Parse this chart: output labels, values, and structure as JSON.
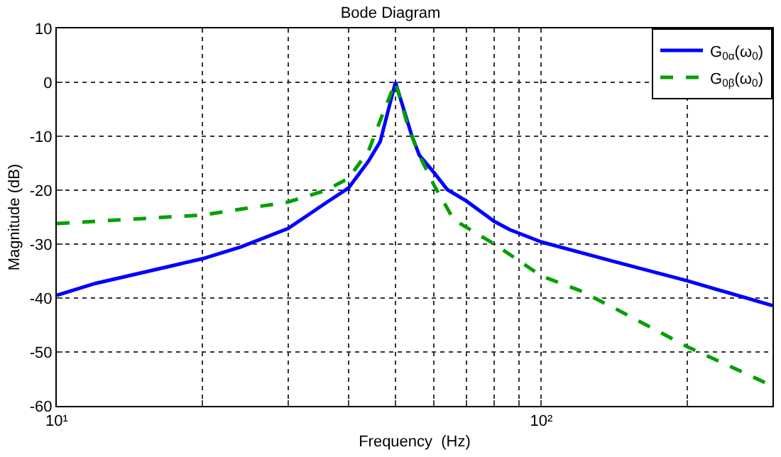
{
  "chart_data": {
    "type": "line",
    "title": "Bode Diagram",
    "xlabel": "Frequency  (Hz)",
    "ylabel": "Magnitude (dB)",
    "log": "x",
    "xlim": [
      10,
      300
    ],
    "ylim": [
      -60,
      10
    ],
    "xticks": [
      {
        "value": 10,
        "label": "10¹"
      },
      {
        "value": 20,
        "label": null
      },
      {
        "value": 30,
        "label": null
      },
      {
        "value": 40,
        "label": null
      },
      {
        "value": 50,
        "label": null
      },
      {
        "value": 60,
        "label": null
      },
      {
        "value": 70,
        "label": null
      },
      {
        "value": 80,
        "label": null
      },
      {
        "value": 90,
        "label": null
      },
      {
        "value": 100,
        "label": "10²"
      },
      {
        "value": 200,
        "label": null
      }
    ],
    "yticks": [
      -60,
      -50,
      -40,
      -30,
      -20,
      -10,
      0,
      10
    ],
    "grid": true,
    "legend": "top right",
    "series": [
      {
        "name": "G$_{0α}$(ω$_{0}$)",
        "color": "#0000ff",
        "line_style": "solid",
        "x": [
          10,
          12,
          20,
          24,
          30,
          33,
          36,
          40,
          44,
          46.5,
          50,
          54,
          56,
          60,
          64,
          70,
          80,
          86,
          100,
          141,
          200,
          300
        ],
        "values": [
          -39.5,
          -37.3,
          -32.7,
          -30.5,
          -27.1,
          -24.6,
          -22.3,
          -19.6,
          -14.6,
          -11,
          0,
          -9.8,
          -13.5,
          -16.7,
          -19.9,
          -22,
          -25.8,
          -27.3,
          -29.6,
          -33.2,
          -36.8,
          -41.4
        ]
      },
      {
        "name": "G$_{0β}$(ω$_{0}$)",
        "color": "#00a000",
        "line_style": "dashed",
        "x": [
          10,
          20,
          30,
          36,
          40,
          44,
          47,
          50,
          53,
          56,
          60,
          66,
          80,
          100,
          120,
          141,
          200,
          300
        ],
        "values": [
          -26.2,
          -24.6,
          -22.2,
          -20,
          -17.8,
          -12.7,
          -6,
          0,
          -8,
          -13.5,
          -19,
          -25.5,
          -30,
          -35.9,
          -38.6,
          -41.8,
          -49,
          -56.3
        ]
      }
    ]
  }
}
